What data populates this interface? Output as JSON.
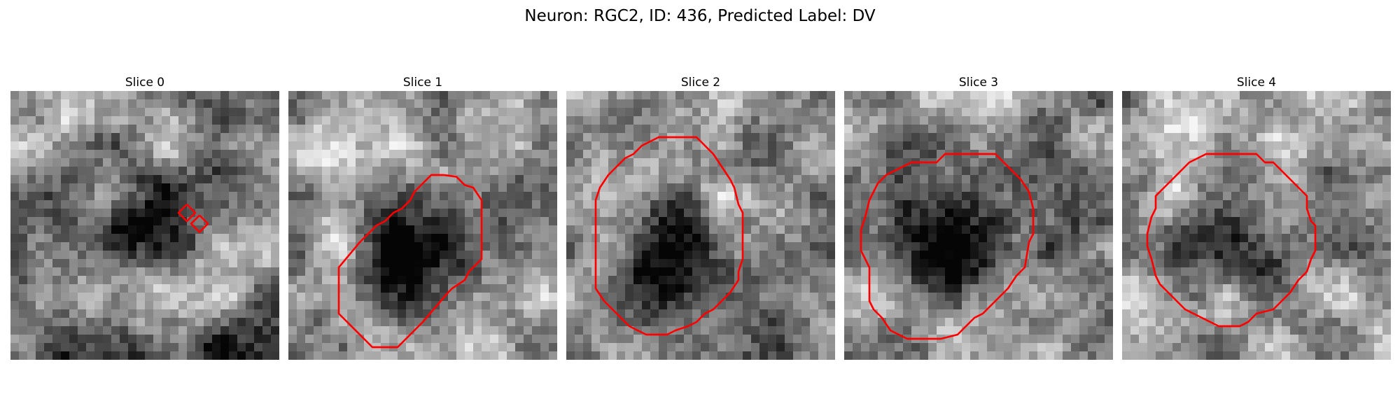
{
  "figure": {
    "title": "Neuron: RGC2, ID: 436, Predicted Label: DV",
    "contour_color": "#ff0000"
  },
  "panels": [
    {
      "title": "Slice 0",
      "contours": [
        [
          [
            21,
            13.5
          ],
          [
            22,
            14.5
          ],
          [
            21,
            15.5
          ],
          [
            20,
            14.5
          ],
          [
            21,
            13.5
          ]
        ],
        [
          [
            22.5,
            14.8
          ],
          [
            23.5,
            15.8
          ],
          [
            22.5,
            16.8
          ],
          [
            21.5,
            15.8
          ],
          [
            22.5,
            14.8
          ]
        ]
      ]
    },
    {
      "title": "Slice 1",
      "contours": [
        [
          [
            18.5,
            10
          ],
          [
            20,
            10.2
          ],
          [
            21,
            11.2
          ],
          [
            22,
            11.5
          ],
          [
            23,
            13
          ],
          [
            23,
            20
          ],
          [
            21.5,
            21.5
          ],
          [
            21,
            22.5
          ],
          [
            19.5,
            23.5
          ],
          [
            19,
            24
          ],
          [
            16,
            27.5
          ],
          [
            13,
            30.5
          ],
          [
            10,
            30.5
          ],
          [
            6,
            26.5
          ],
          [
            6,
            21
          ],
          [
            8.5,
            18
          ],
          [
            9.5,
            17
          ],
          [
            10.5,
            16
          ],
          [
            11.5,
            15.5
          ],
          [
            12.5,
            14.5
          ],
          [
            13.5,
            14
          ],
          [
            14.5,
            13
          ],
          [
            15,
            12
          ],
          [
            16,
            11
          ],
          [
            17,
            10
          ],
          [
            18.5,
            10
          ]
        ]
      ]
    },
    {
      "title": "Slice 2",
      "contours": [
        [
          [
            13.5,
            5.5
          ],
          [
            15.5,
            5.5
          ],
          [
            16.5,
            6.5
          ],
          [
            17.5,
            7.5
          ],
          [
            18.5,
            9
          ],
          [
            19.5,
            10.5
          ],
          [
            20,
            11.5
          ],
          [
            20.5,
            13.5
          ],
          [
            21,
            14.5
          ],
          [
            21,
            20
          ],
          [
            20.5,
            21.5
          ],
          [
            20.5,
            22.5
          ],
          [
            19.5,
            24
          ],
          [
            18.5,
            25
          ],
          [
            17.5,
            26
          ],
          [
            16.5,
            26.5
          ],
          [
            15.5,
            27.5
          ],
          [
            14.5,
            28
          ],
          [
            13,
            28.5
          ],
          [
            12,
            29
          ],
          [
            9.5,
            29
          ],
          [
            8.5,
            28.5
          ],
          [
            7.5,
            28
          ],
          [
            6.5,
            27
          ],
          [
            5.5,
            26
          ],
          [
            4.5,
            25
          ],
          [
            3.5,
            23.5
          ],
          [
            3.5,
            13
          ],
          [
            4,
            11.5
          ],
          [
            5,
            10
          ],
          [
            6,
            9
          ],
          [
            7,
            8
          ],
          [
            8,
            7.5
          ],
          [
            9,
            6.5
          ],
          [
            10,
            6
          ],
          [
            11,
            5.5
          ],
          [
            13.5,
            5.5
          ]
        ]
      ]
    },
    {
      "title": "Slice 3",
      "contours": [
        [
          [
            16,
            7.5
          ],
          [
            18,
            7.5
          ],
          [
            19,
            8.5
          ],
          [
            20,
            9.5
          ],
          [
            21,
            10.5
          ],
          [
            22,
            12
          ],
          [
            22.5,
            14
          ],
          [
            22.5,
            17
          ],
          [
            22,
            18
          ],
          [
            21.5,
            21
          ],
          [
            20.5,
            22
          ],
          [
            19.5,
            23.5
          ],
          [
            18.5,
            24.5
          ],
          [
            17.5,
            25.5
          ],
          [
            16.5,
            26.5
          ],
          [
            15.5,
            27
          ],
          [
            14.5,
            28
          ],
          [
            13.5,
            29
          ],
          [
            11.5,
            29.5
          ],
          [
            7.5,
            29.5
          ],
          [
            6.5,
            29
          ],
          [
            5.5,
            28.5
          ],
          [
            4.5,
            27
          ],
          [
            3.5,
            26
          ],
          [
            3,
            25
          ],
          [
            3,
            21
          ],
          [
            2.5,
            20
          ],
          [
            2,
            19
          ],
          [
            2,
            16.5
          ],
          [
            2.5,
            15
          ],
          [
            3,
            13
          ],
          [
            3.5,
            12
          ],
          [
            4,
            11
          ],
          [
            5,
            10
          ],
          [
            6,
            9.5
          ],
          [
            7,
            9
          ],
          [
            8,
            8.5
          ],
          [
            11,
            8.5
          ],
          [
            12,
            7.5
          ],
          [
            16,
            7.5
          ]
        ]
      ]
    },
    {
      "title": "Slice 4",
      "contours": [
        [
          [
            12.5,
            7.5
          ],
          [
            16,
            7.5
          ],
          [
            17,
            8.5
          ],
          [
            18,
            8.5
          ],
          [
            19,
            9.5
          ],
          [
            20,
            10.5
          ],
          [
            21,
            11.5
          ],
          [
            22,
            12.5
          ],
          [
            22,
            14
          ],
          [
            22.5,
            15.5
          ],
          [
            23,
            16
          ],
          [
            23,
            19
          ],
          [
            22.5,
            20
          ],
          [
            22,
            21.5
          ],
          [
            21,
            22.5
          ],
          [
            20,
            24
          ],
          [
            19,
            25
          ],
          [
            18,
            26
          ],
          [
            16,
            26.5
          ],
          [
            15,
            27.5
          ],
          [
            14,
            28
          ],
          [
            11.5,
            28
          ],
          [
            10.5,
            27.5
          ],
          [
            9.5,
            27
          ],
          [
            8.5,
            26.5
          ],
          [
            7.5,
            26
          ],
          [
            6.5,
            25
          ],
          [
            5.5,
            24
          ],
          [
            4.5,
            23
          ],
          [
            4,
            22
          ],
          [
            3.5,
            20
          ],
          [
            3,
            18.5
          ],
          [
            3,
            17
          ],
          [
            3.5,
            15
          ],
          [
            4,
            14
          ],
          [
            4,
            12.5
          ],
          [
            5,
            11.5
          ],
          [
            6,
            10.5
          ],
          [
            7,
            9.5
          ],
          [
            8,
            8.5
          ],
          [
            9,
            8
          ],
          [
            10,
            7.5
          ],
          [
            12.5,
            7.5
          ]
        ]
      ]
    }
  ]
}
